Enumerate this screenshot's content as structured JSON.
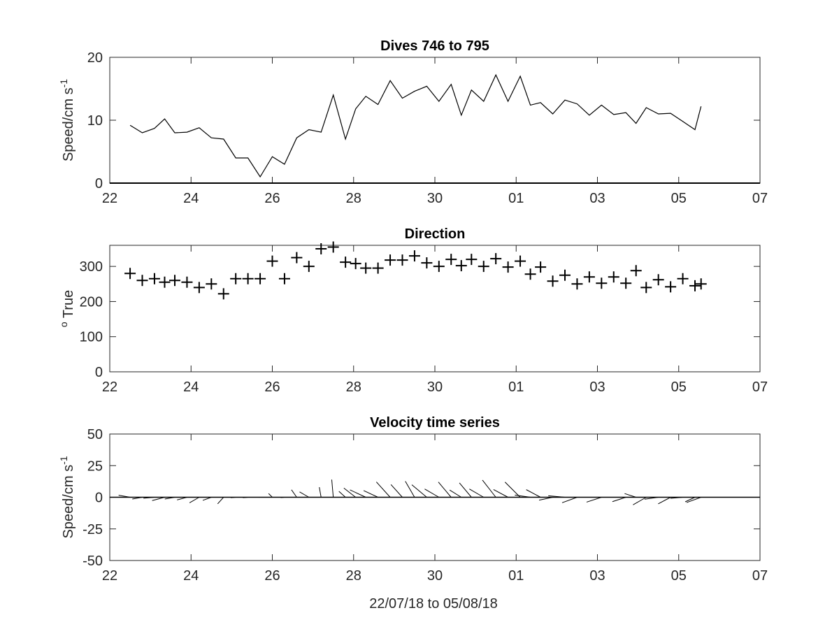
{
  "figure": {
    "xlabel": "22/07/18 to 05/08/18",
    "x_tick_labels": [
      "22",
      "24",
      "26",
      "28",
      "30",
      "01",
      "03",
      "05",
      "07"
    ]
  },
  "chart_data": [
    {
      "type": "line",
      "title": "Dives 746 to 795",
      "ylabel": "Speed/cm s",
      "ylabel_superscript": "-1",
      "xlim": [
        0,
        16
      ],
      "ylim": [
        0,
        20
      ],
      "y_ticks": [
        0,
        10,
        20
      ],
      "x_ticks": [
        0,
        2,
        4,
        6,
        8,
        10,
        12,
        14,
        16
      ],
      "x_tick_labels": [
        "22",
        "24",
        "26",
        "28",
        "30",
        "01",
        "03",
        "05",
        "07"
      ],
      "x_units": "days from 22 Jul 2018",
      "series": [
        {
          "x": [
            0.5,
            0.8,
            1.1,
            1.35,
            1.6,
            1.9,
            2.2,
            2.5,
            2.8,
            3.1,
            3.4,
            3.7,
            4.0,
            4.3,
            4.6,
            4.9,
            5.2,
            5.5,
            5.8,
            6.05,
            6.3,
            6.6,
            6.9,
            7.2,
            7.5,
            7.8,
            8.1,
            8.4,
            8.65,
            8.9,
            9.2,
            9.5,
            9.8,
            10.1,
            10.35,
            10.6,
            10.9,
            11.2,
            11.5,
            11.8,
            12.1,
            12.4,
            12.7,
            12.95,
            13.2,
            13.5,
            13.8,
            14.1,
            14.4,
            14.55
          ],
          "y": [
            9.2,
            8.0,
            8.7,
            10.2,
            8.0,
            8.1,
            8.8,
            7.2,
            7.0,
            4.0,
            4.0,
            1.0,
            4.2,
            3.0,
            7.2,
            8.5,
            8.1,
            14.0,
            7.0,
            11.8,
            13.8,
            12.5,
            16.3,
            13.5,
            14.6,
            15.4,
            13.0,
            15.7,
            10.8,
            14.8,
            13.0,
            17.2,
            13.0,
            17.0,
            12.4,
            12.8,
            11.0,
            13.2,
            12.6,
            10.8,
            12.4,
            10.9,
            11.2,
            9.5,
            12.0,
            11.0,
            11.1,
            9.8,
            8.5,
            12.2
          ]
        }
      ]
    },
    {
      "type": "scatter",
      "title": "Direction",
      "ylabel": "True",
      "ylabel_superscript": "o",
      "xlim": [
        0,
        16
      ],
      "ylim": [
        0,
        360
      ],
      "y_ticks": [
        0,
        100,
        200,
        300
      ],
      "x_ticks": [
        0,
        2,
        4,
        6,
        8,
        10,
        12,
        14,
        16
      ],
      "x_tick_labels": [
        "22",
        "24",
        "26",
        "28",
        "30",
        "01",
        "03",
        "05",
        "07"
      ],
      "x_units": "days from 22 Jul 2018",
      "marker": "+",
      "series": [
        {
          "x": [
            0.5,
            0.8,
            1.1,
            1.35,
            1.6,
            1.9,
            2.2,
            2.5,
            2.8,
            3.1,
            3.4,
            3.7,
            4.0,
            4.3,
            4.6,
            4.9,
            5.2,
            5.5,
            5.8,
            6.05,
            6.3,
            6.6,
            6.9,
            7.2,
            7.5,
            7.8,
            8.1,
            8.4,
            8.65,
            8.9,
            9.2,
            9.5,
            9.8,
            10.1,
            10.35,
            10.6,
            10.9,
            11.2,
            11.5,
            11.8,
            12.1,
            12.4,
            12.7,
            12.95,
            13.2,
            13.5,
            13.8,
            14.1,
            14.4,
            14.55
          ],
          "y": [
            280,
            260,
            265,
            255,
            260,
            255,
            240,
            250,
            222,
            265,
            265,
            265,
            315,
            265,
            325,
            300,
            350,
            355,
            312,
            308,
            295,
            295,
            318,
            318,
            330,
            310,
            300,
            320,
            302,
            320,
            300,
            322,
            298,
            315,
            278,
            298,
            258,
            275,
            250,
            270,
            252,
            270,
            252,
            288,
            240,
            262,
            242,
            265,
            245,
            250
          ]
        }
      ]
    },
    {
      "type": "quiver",
      "title": "Velocity time series",
      "ylabel": "Speed/cm s",
      "ylabel_superscript": "-1",
      "xlim": [
        0,
        16
      ],
      "ylim": [
        -50,
        50
      ],
      "y_ticks": [
        -50,
        -25,
        0,
        25,
        50
      ],
      "x_ticks": [
        0,
        2,
        4,
        6,
        8,
        10,
        12,
        14,
        16
      ],
      "x_tick_labels": [
        "22",
        "24",
        "26",
        "28",
        "30",
        "01",
        "03",
        "05",
        "07"
      ],
      "x_units": "days from 22 Jul 2018",
      "speed": [
        9.2,
        8.0,
        8.7,
        10.2,
        8.0,
        8.1,
        8.8,
        7.2,
        7.0,
        4.0,
        4.0,
        1.0,
        4.2,
        3.0,
        7.2,
        8.5,
        8.1,
        14.0,
        7.0,
        11.8,
        13.8,
        12.5,
        16.3,
        13.5,
        14.6,
        15.4,
        13.0,
        15.7,
        10.8,
        14.8,
        13.0,
        17.2,
        13.0,
        17.0,
        12.4,
        12.8,
        11.0,
        13.2,
        12.6,
        10.8,
        12.4,
        10.9,
        11.2,
        9.5,
        12.0,
        11.0,
        11.1,
        9.8,
        8.5,
        12.2
      ],
      "direction_deg_true": [
        280,
        260,
        265,
        255,
        260,
        255,
        240,
        250,
        222,
        265,
        265,
        265,
        315,
        265,
        325,
        300,
        350,
        355,
        312,
        308,
        295,
        295,
        318,
        318,
        330,
        310,
        300,
        320,
        302,
        320,
        300,
        322,
        298,
        315,
        278,
        298,
        258,
        275,
        250,
        270,
        252,
        270,
        252,
        288,
        240,
        262,
        242,
        265,
        245,
        250
      ]
    }
  ]
}
